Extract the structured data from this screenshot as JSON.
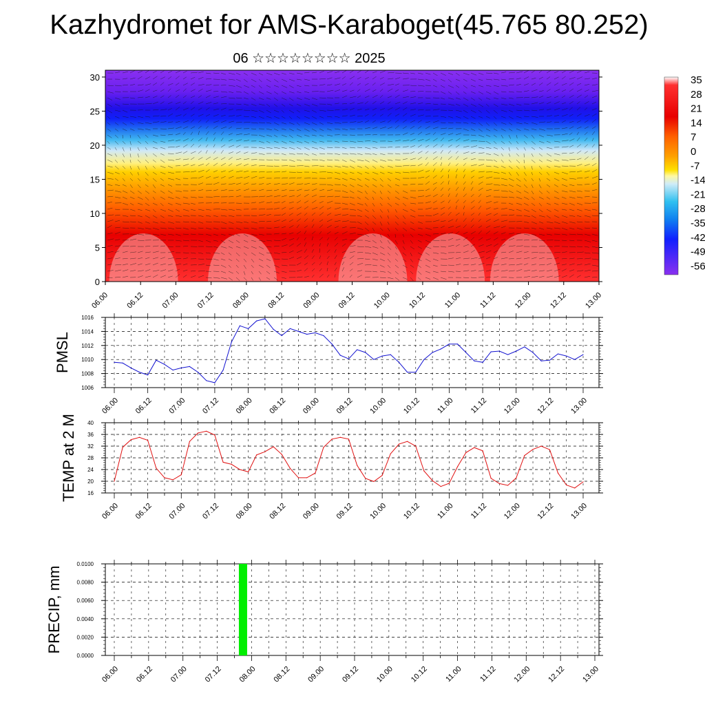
{
  "title": "Kazhydromet for AMS-Karaboget(45.765 80.252)",
  "subtitle": "06 ☆☆☆☆☆☆☆☆ 2025",
  "time_ticks": [
    "06.00",
    "06.12",
    "07.00",
    "07.12",
    "08.00",
    "08.12",
    "09.00",
    "09.12",
    "10.00",
    "10.12",
    "11.00",
    "11.12",
    "12.00",
    "12.12",
    "13.00"
  ],
  "colors": {
    "pmsl_line": "#1010d0",
    "temp_line": "#e01010",
    "precip_bar": "#00ee00"
  },
  "chart_data": [
    {
      "type": "heatmap",
      "name_hint": "vertical-temperature-profile",
      "x_labels": [
        "06.00",
        "06.12",
        "07.00",
        "07.12",
        "08.00",
        "08.12",
        "09.00",
        "09.12",
        "10.00",
        "10.12",
        "11.00",
        "11.12",
        "12.00",
        "12.12",
        "13.00"
      ],
      "ylim": [
        0,
        31
      ],
      "y_ticks": [
        0,
        5,
        10,
        15,
        20,
        25,
        30
      ],
      "colorbar_labels": [
        "35",
        "28",
        "21",
        "14",
        "7",
        "0",
        "-7",
        "-14",
        "-21",
        "-28",
        "-35",
        "-42",
        "-49",
        "-56"
      ],
      "colorbar_range": [
        -60,
        37
      ],
      "grid": false
    },
    {
      "type": "line",
      "ylabel": "PMSL",
      "ylim": [
        1006,
        1016
      ],
      "y_ticks": [
        "1006",
        "1008",
        "1010",
        "1012",
        "1014",
        "1016"
      ],
      "x_labels": [
        "06.00",
        "06.12",
        "07.00",
        "07.12",
        "08.00",
        "08.12",
        "09.00",
        "09.12",
        "10.00",
        "10.12",
        "11.00",
        "11.12",
        "12.00",
        "12.12",
        "13.00"
      ],
      "values": [
        1009.6,
        1009.5,
        1008.8,
        1008.2,
        1007.8,
        1009.9,
        1009.3,
        1008.5,
        1008.8,
        1009.0,
        1008.2,
        1007.0,
        1006.7,
        1008.5,
        1012.5,
        1014.8,
        1014.4,
        1015.5,
        1015.8,
        1014.3,
        1013.4,
        1014.4,
        1014.0,
        1013.6,
        1013.8,
        1013.4,
        1012.2,
        1010.6,
        1010.1,
        1011.4,
        1011.0,
        1010.0,
        1010.5,
        1010.7,
        1009.6,
        1008.2,
        1008.2,
        1010.0,
        1011.0,
        1011.5,
        1012.2,
        1012.2,
        1011.0,
        1009.8,
        1009.6,
        1011.1,
        1011.2,
        1010.7,
        1011.2,
        1011.8,
        1011.0,
        1009.8,
        1009.9,
        1010.8,
        1010.5,
        1010.0,
        1010.7
      ],
      "grid": true
    },
    {
      "type": "line",
      "ylabel": "TEMP at 2 M",
      "ylim": [
        16,
        40
      ],
      "y_ticks": [
        "16",
        "20",
        "24",
        "28",
        "32",
        "36",
        "40"
      ],
      "x_labels": [
        "06.00",
        "06.12",
        "07.00",
        "07.12",
        "08.00",
        "08.12",
        "09.00",
        "09.12",
        "10.00",
        "10.12",
        "11.00",
        "11.12",
        "12.00",
        "12.12",
        "13.00"
      ],
      "values": [
        20.0,
        31.6,
        34.2,
        35.0,
        34.0,
        24.5,
        21.2,
        20.5,
        22.2,
        33.6,
        36.5,
        37.1,
        35.8,
        26.5,
        25.8,
        24.0,
        23.2,
        29.0,
        30.1,
        31.8,
        29.2,
        24.4,
        21.2,
        21.2,
        22.8,
        31.6,
        34.4,
        35.0,
        34.4,
        25.4,
        21.0,
        19.9,
        22.0,
        29.4,
        32.7,
        33.6,
        32.0,
        23.5,
        20.2,
        18.2,
        19.3,
        25.0,
        29.8,
        31.5,
        30.4,
        21.0,
        19.2,
        18.6,
        21.1,
        28.8,
        30.9,
        32.0,
        30.8,
        22.8,
        18.7,
        17.7,
        19.8
      ],
      "grid": true
    },
    {
      "type": "bar",
      "ylabel": "PRECIP, mm",
      "ylim": [
        0,
        0.01
      ],
      "y_ticks": [
        "0.0000",
        "0.0020",
        "0.0040",
        "0.0060",
        "0.0080",
        "0.0100"
      ],
      "x_labels": [
        "06.00",
        "06.12",
        "07.00",
        "07.12",
        "08.00",
        "08.12",
        "09.00",
        "09.12",
        "10.00",
        "10.12",
        "11.00",
        "11.12",
        "12.00",
        "12.12",
        "13.00"
      ],
      "bars": [
        {
          "x_hours": 45,
          "value": 0.01
        }
      ],
      "grid": true
    }
  ]
}
